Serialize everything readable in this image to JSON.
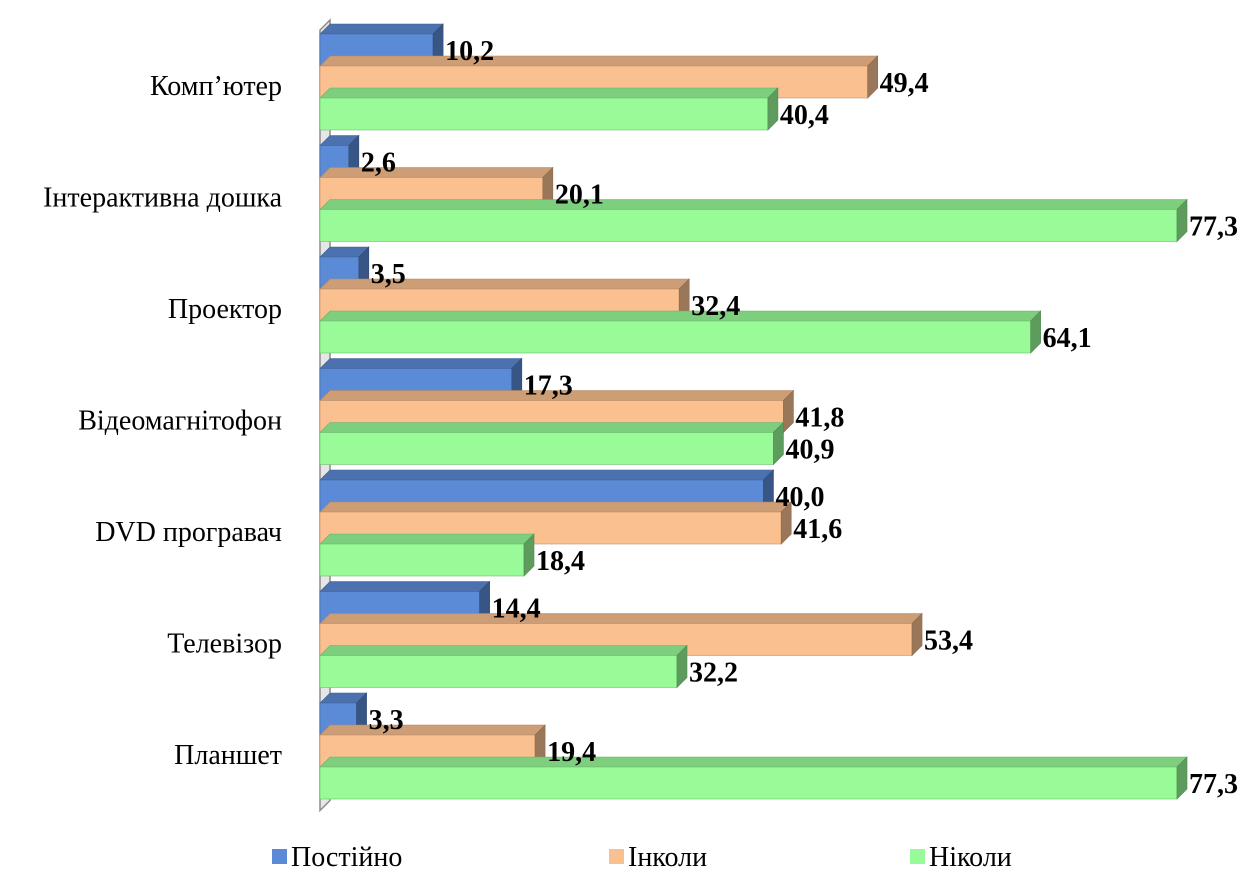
{
  "chart_data": {
    "type": "bar",
    "orientation": "horizontal",
    "three_d": true,
    "categories": [
      "Комп’ютер",
      "Інтерактивна дошка",
      "Проектор",
      "Відеомагнітофон",
      "DVD програвач",
      "Телевізор",
      "Планшет"
    ],
    "series": [
      {
        "name": "Постійно",
        "color": "#5B8BD6",
        "values": [
          10.2,
          2.6,
          3.5,
          17.3,
          40.0,
          14.4,
          3.3
        ],
        "labels": [
          "10,2",
          "2,6",
          "3,5",
          "17,3",
          "40,0",
          "14,4",
          "3,3"
        ]
      },
      {
        "name": "Інколи",
        "color": "#FAC090",
        "values": [
          49.4,
          20.1,
          32.4,
          41.8,
          41.6,
          53.4,
          19.4
        ],
        "labels": [
          "49,4",
          "20,1",
          "32,4",
          "41,8",
          "41,6",
          "53,4",
          "19,4"
        ]
      },
      {
        "name": "Ніколи",
        "color": "#98FB98",
        "values": [
          40.4,
          77.3,
          64.1,
          40.9,
          18.4,
          32.2,
          77.3
        ],
        "labels": [
          "40,4",
          "77,3",
          "64,1",
          "40,9",
          "18,4",
          "32,2",
          "77,3"
        ]
      }
    ],
    "xlim": [
      0,
      77.3
    ],
    "grid": false,
    "legend_position": "bottom"
  }
}
